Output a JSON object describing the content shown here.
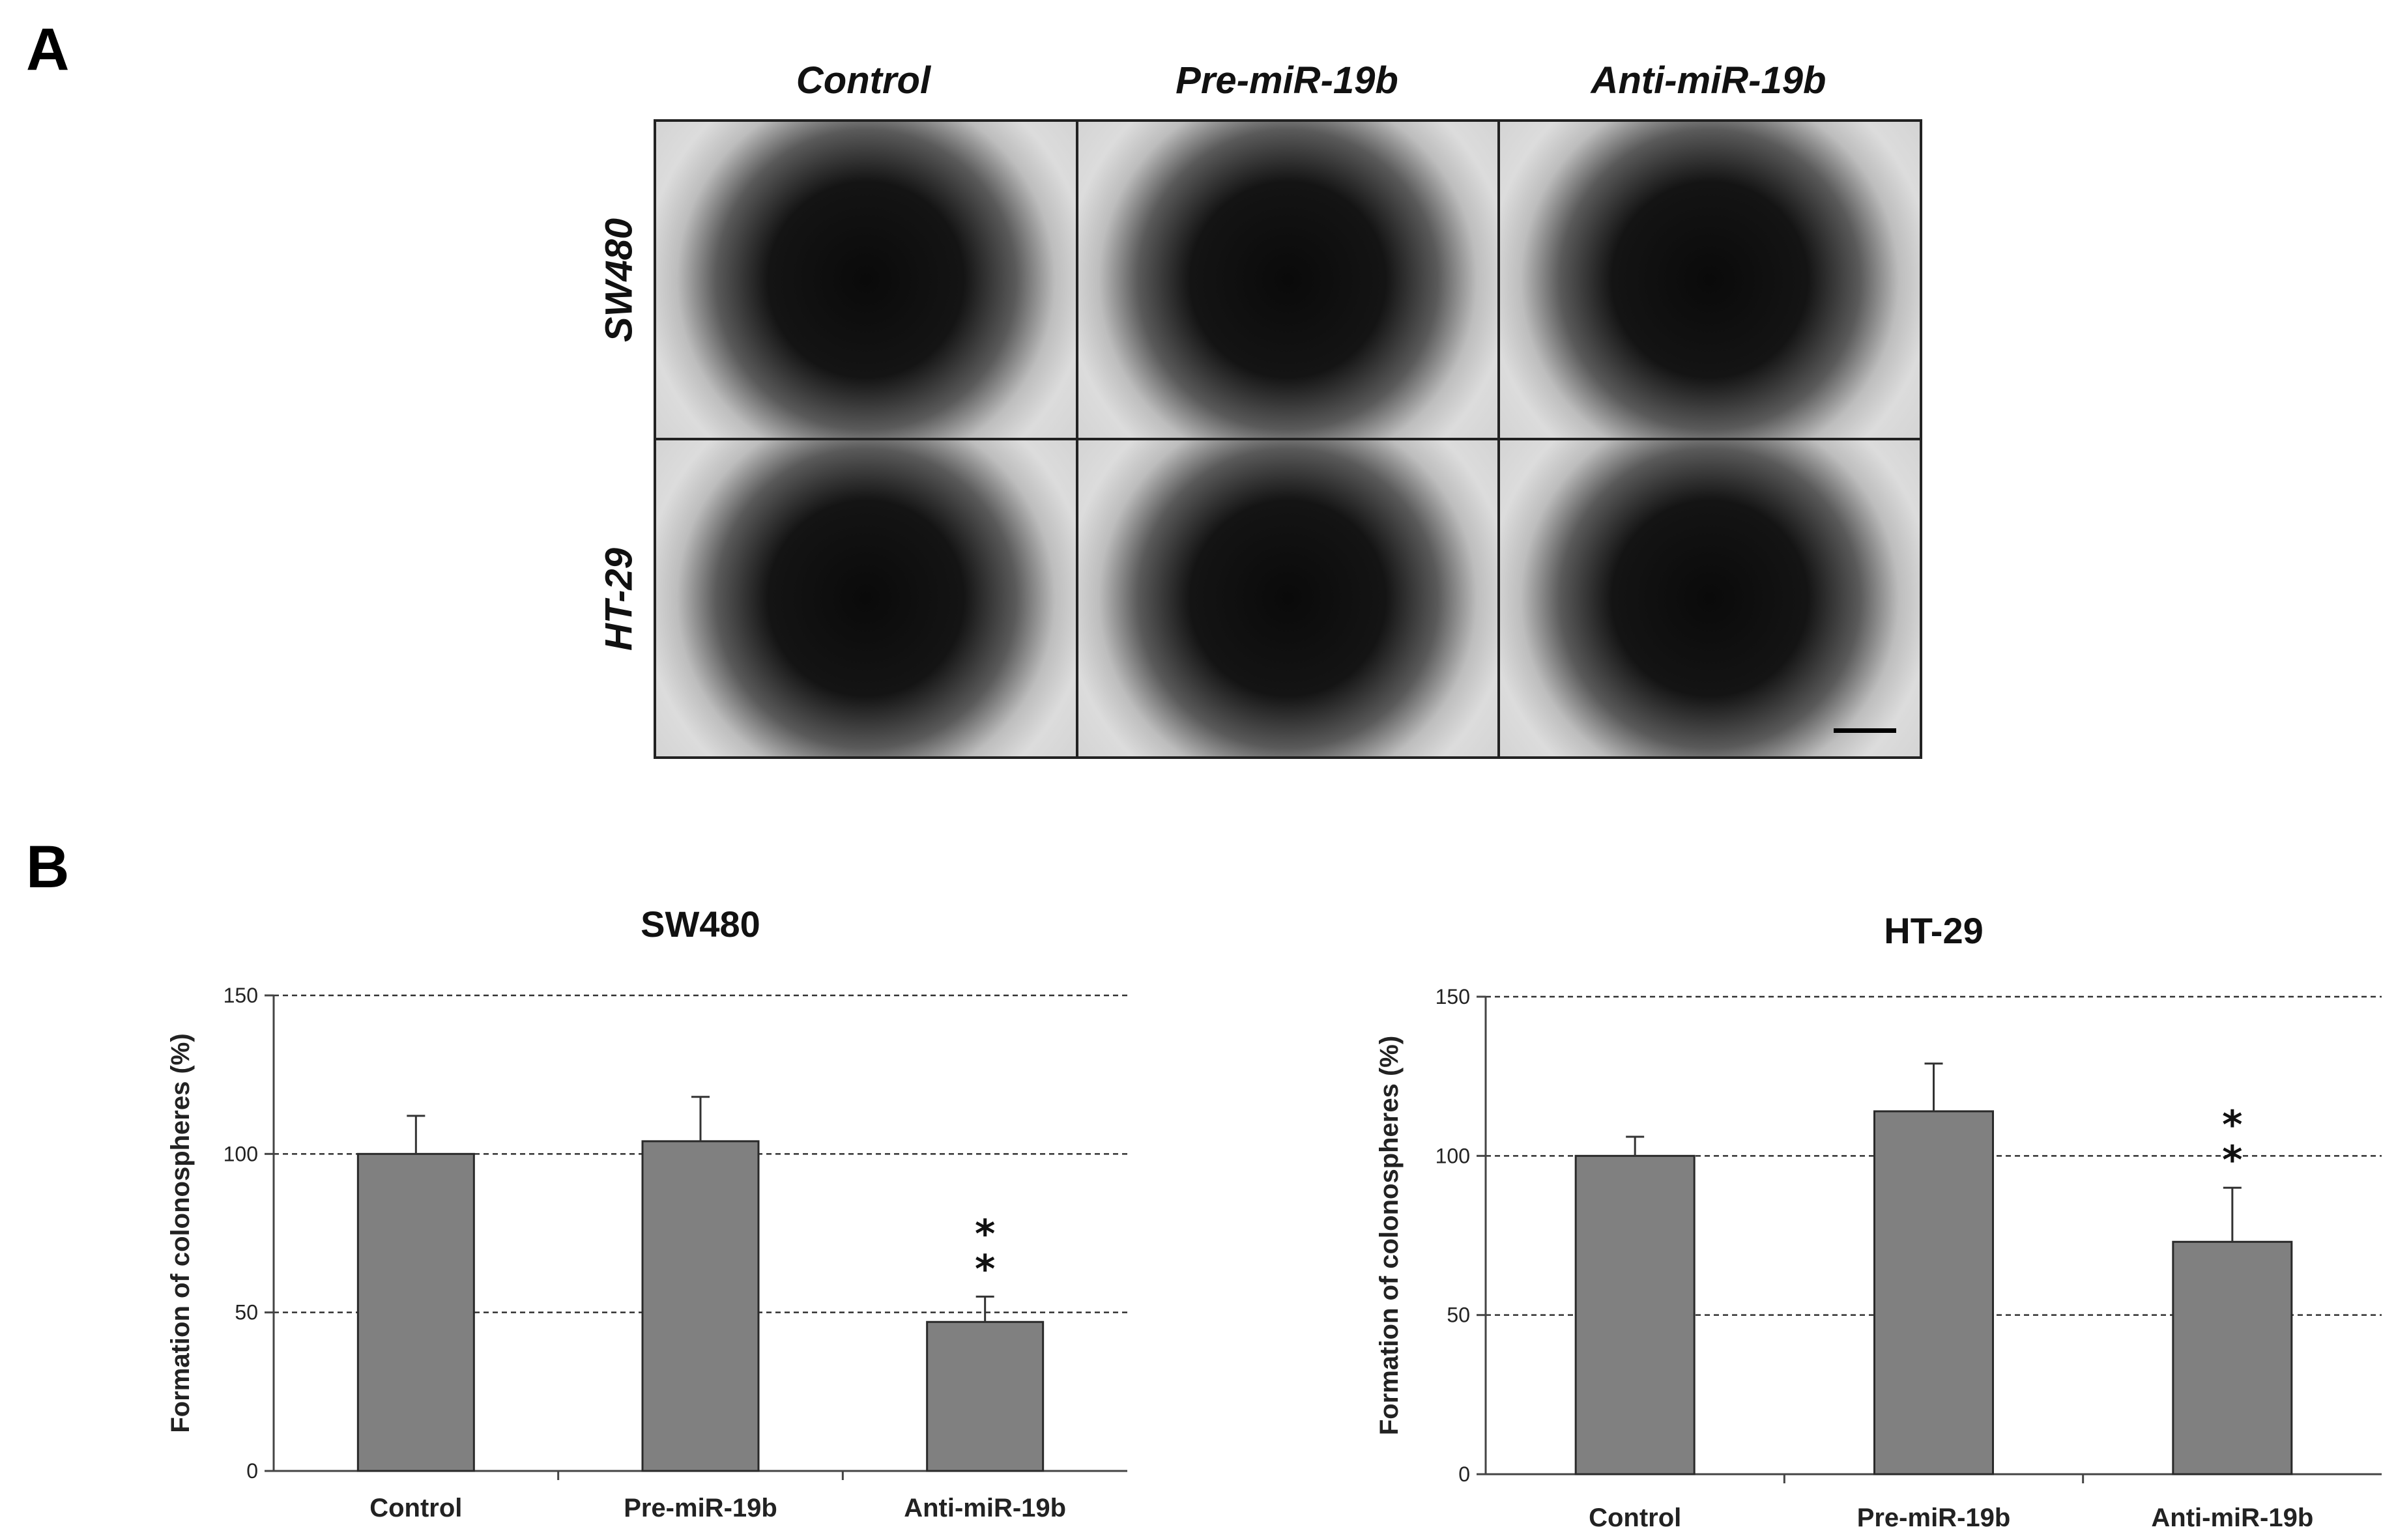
{
  "panel_a": {
    "letter": "A",
    "columns": [
      "Control",
      "Pre-miR-19b",
      "Anti-miR-19b"
    ],
    "rows": [
      "SW480",
      "HT-29"
    ]
  },
  "panel_b": {
    "letter": "B"
  },
  "colors": {
    "bar": "#808080",
    "grid": "#333333",
    "axis": "#444444"
  },
  "chart_data": [
    {
      "type": "bar",
      "title": "SW480",
      "categories": [
        "Control",
        "Pre-miR-19b",
        "Anti-miR-19b"
      ],
      "values": [
        100,
        104,
        47
      ],
      "errors": [
        12,
        14,
        8
      ],
      "significance": [
        "",
        "",
        "**"
      ],
      "xlabel": "",
      "ylabel": "Formation of colonospheres (%)",
      "ylim": [
        0,
        150
      ],
      "yticks": [
        0,
        50,
        100,
        150
      ],
      "grid": true
    },
    {
      "type": "bar",
      "title": "HT-29",
      "categories": [
        "Control",
        "Pre-miR-19b",
        "Anti-miR-19b"
      ],
      "values": [
        100,
        114,
        73
      ],
      "errors": [
        6,
        15,
        17
      ],
      "significance": [
        "",
        "",
        "**"
      ],
      "xlabel": "",
      "ylabel": "Formation of colonospheres (%)",
      "ylim": [
        0,
        150
      ],
      "yticks": [
        0,
        50,
        100,
        150
      ],
      "grid": true
    }
  ]
}
